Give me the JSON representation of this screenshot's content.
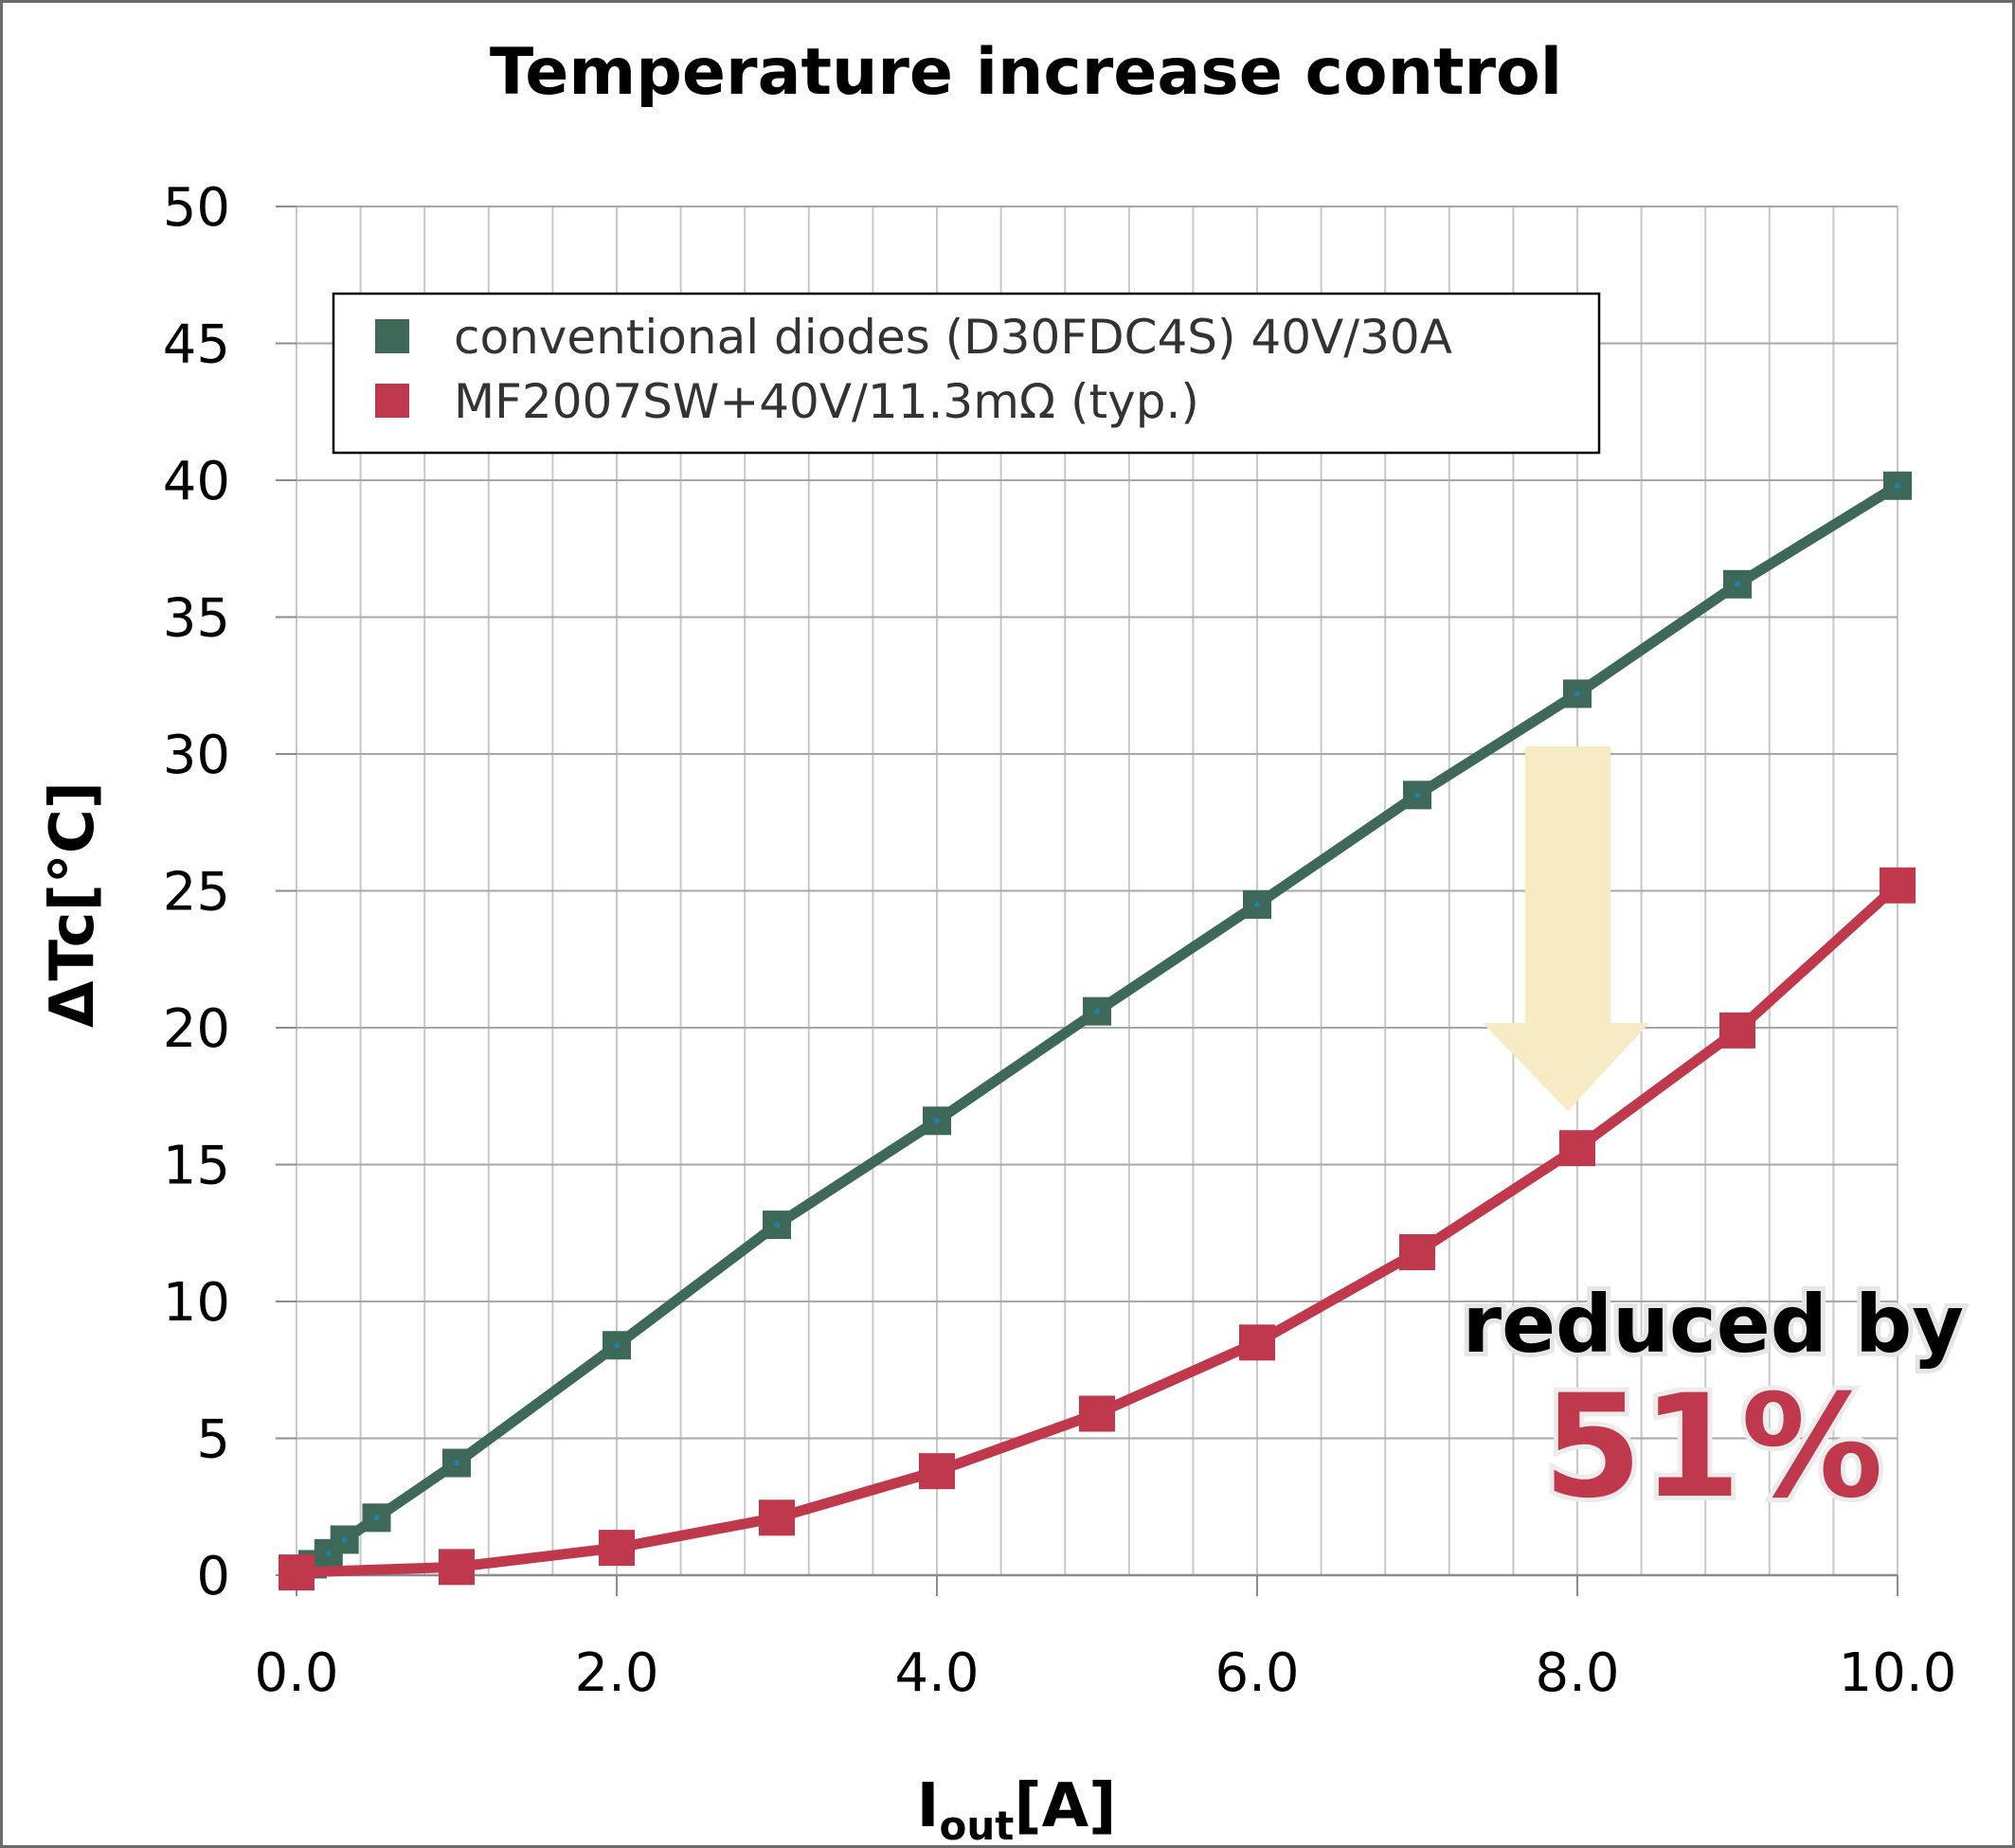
{
  "chart_data": {
    "type": "line",
    "title": "Temperature increase control",
    "xlabel": "I",
    "xlabel_sub": "out",
    "xlabel_unit": "[A]",
    "ylabel": "ΔTc[°C]",
    "xlim": [
      0,
      10
    ],
    "ylim": [
      0,
      50
    ],
    "x_ticks": [
      0,
      2,
      4,
      6,
      8,
      10
    ],
    "x_tick_labels": [
      "0.0",
      "2.0",
      "4.0",
      "6.0",
      "8.0",
      "10.0"
    ],
    "y_ticks": [
      0,
      5,
      10,
      15,
      20,
      25,
      30,
      35,
      40,
      45,
      50
    ],
    "y_tick_labels": [
      "0",
      "5",
      "10",
      "15",
      "20",
      "25",
      "30",
      "35",
      "40",
      "45",
      "50"
    ],
    "x_minor_step": 0.4,
    "grid": true,
    "legend_position": "top-left",
    "series": [
      {
        "name": "conventional diodes (D30FDC4S) 40V/30A",
        "color": "#3e6857",
        "x": [
          0,
          0.1,
          0.2,
          0.3,
          0.5,
          1,
          2,
          3,
          4,
          5,
          6,
          7,
          8,
          9,
          10
        ],
        "y": [
          0,
          0.4,
          0.8,
          1.3,
          2.1,
          4.1,
          8.4,
          12.8,
          16.6,
          20.6,
          24.5,
          28.5,
          32.2,
          36.2,
          39.8
        ]
      },
      {
        "name": "MF2007SW+40V/11.3mΩ (typ.)",
        "color": "#c0384b",
        "x": [
          0,
          1,
          2,
          3,
          4,
          5,
          6,
          7,
          8,
          9,
          10
        ],
        "y": [
          0.1,
          0.3,
          1.0,
          2.1,
          3.8,
          5.9,
          8.5,
          11.8,
          15.6,
          19.9,
          25.2
        ]
      }
    ],
    "annotation": {
      "line1": "reduced by",
      "line2": "51%",
      "arrow_color": "#f7ebc6",
      "accent_color": "#c0384b"
    }
  }
}
